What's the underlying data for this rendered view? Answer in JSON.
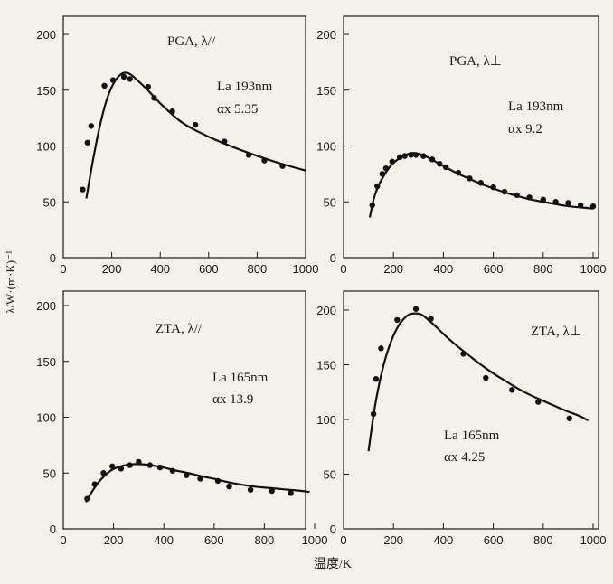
{
  "figure": {
    "ylabel": "λ/W·(m·K)⁻¹",
    "xlabel": "温度/K"
  },
  "chart_data": [
    {
      "type": "scatter",
      "title": "PGA, λ//",
      "la_text": "La 193nm",
      "alpha_text": "αx 5.35",
      "xlim": [
        0,
        1000
      ],
      "ylim": [
        0,
        200
      ],
      "xticks": [
        0,
        200,
        400,
        600,
        800,
        1000
      ],
      "yticks": [
        0,
        50,
        100,
        150,
        200
      ],
      "x": [
        80,
        100,
        115,
        170,
        205,
        250,
        275,
        350,
        375,
        450,
        545,
        665,
        765,
        830,
        905
      ],
      "y": [
        61,
        103,
        118,
        154,
        159,
        162,
        160,
        153,
        143,
        131,
        119,
        104,
        92,
        87,
        82
      ],
      "fit_x": [
        95,
        120,
        150,
        180,
        210,
        240,
        260,
        280,
        300,
        350,
        400,
        450,
        500,
        600,
        700,
        800,
        900,
        1000
      ],
      "fit_y": [
        53,
        85,
        118,
        143,
        158,
        165,
        166,
        164,
        160,
        150,
        138,
        128,
        119,
        108,
        99,
        91,
        84,
        78
      ]
    },
    {
      "type": "scatter",
      "title": "PGA, λ⊥",
      "la_text": "La 193nm",
      "alpha_text": "αx 9.2",
      "xlim": [
        0,
        1000
      ],
      "ylim": [
        0,
        200
      ],
      "xticks": [
        0,
        200,
        400,
        600,
        800,
        1000
      ],
      "yticks": [
        0,
        50,
        100,
        150,
        200
      ],
      "x": [
        115,
        135,
        155,
        170,
        195,
        225,
        245,
        270,
        290,
        320,
        355,
        385,
        410,
        460,
        505,
        550,
        600,
        645,
        695,
        745,
        800,
        850,
        900,
        950,
        1000
      ],
      "y": [
        47,
        64,
        75,
        80,
        86,
        90,
        91,
        92,
        92,
        91,
        88,
        84,
        81,
        76,
        71,
        67,
        63,
        59,
        56,
        54,
        52,
        50,
        49,
        47,
        46
      ],
      "fit_x": [
        105,
        120,
        140,
        160,
        180,
        200,
        230,
        260,
        280,
        300,
        330,
        360,
        400,
        450,
        500,
        550,
        600,
        650,
        700,
        750,
        800,
        850,
        900,
        950,
        1000
      ],
      "fit_y": [
        36,
        53,
        65,
        73,
        80,
        85,
        90,
        93,
        94,
        93,
        91,
        87,
        82,
        76,
        71,
        66,
        62,
        58,
        55,
        52,
        50,
        48,
        46,
        45,
        44
      ]
    },
    {
      "type": "scatter",
      "title": "ZTA, λ//",
      "la_text": "La 165nm",
      "alpha_text": "αx 13.9",
      "xlim": [
        0,
        1000
      ],
      "ylim": [
        0,
        200
      ],
      "xticks": [
        0,
        200,
        400,
        600,
        800,
        1000
      ],
      "yticks": [
        0,
        50,
        100,
        150,
        200
      ],
      "x": [
        95,
        125,
        160,
        195,
        230,
        265,
        300,
        345,
        385,
        435,
        490,
        545,
        615,
        660,
        745,
        830,
        905
      ],
      "y": [
        27,
        40,
        50,
        56,
        54,
        57,
        60,
        57,
        55,
        52,
        48,
        45,
        43,
        38,
        35,
        34,
        32
      ],
      "fit_x": [
        90,
        110,
        140,
        170,
        200,
        240,
        280,
        310,
        350,
        400,
        450,
        500,
        550,
        600,
        650,
        700,
        750,
        800,
        850,
        900,
        950,
        980
      ],
      "fit_y": [
        24,
        32,
        42,
        49,
        54,
        57,
        58,
        58,
        57,
        55,
        52,
        50,
        47,
        45,
        42,
        40,
        38,
        37,
        36,
        35,
        34,
        33
      ]
    },
    {
      "type": "scatter",
      "title": "ZTA, λ⊥",
      "la_text": "La 165nm",
      "alpha_text": "αx 4.25",
      "xlim": [
        0,
        1000
      ],
      "ylim": [
        0,
        200
      ],
      "xticks": [
        0,
        200,
        400,
        600,
        800,
        1000
      ],
      "yticks": [
        0,
        50,
        100,
        150,
        200
      ],
      "x": [
        120,
        130,
        150,
        215,
        290,
        350,
        480,
        570,
        675,
        780,
        905
      ],
      "y": [
        105,
        137,
        165,
        191,
        201,
        192,
        160,
        138,
        127,
        116,
        101
      ],
      "fit_x": [
        100,
        120,
        140,
        160,
        180,
        200,
        220,
        240,
        260,
        280,
        300,
        320,
        340,
        370,
        400,
        450,
        500,
        550,
        600,
        650,
        700,
        750,
        800,
        850,
        900,
        950,
        980
      ],
      "fit_y": [
        71,
        105,
        130,
        150,
        165,
        177,
        186,
        192,
        196,
        197,
        197,
        195,
        191,
        185,
        178,
        168,
        159,
        150,
        142,
        135,
        128,
        122,
        117,
        112,
        107,
        103,
        99
      ]
    }
  ]
}
